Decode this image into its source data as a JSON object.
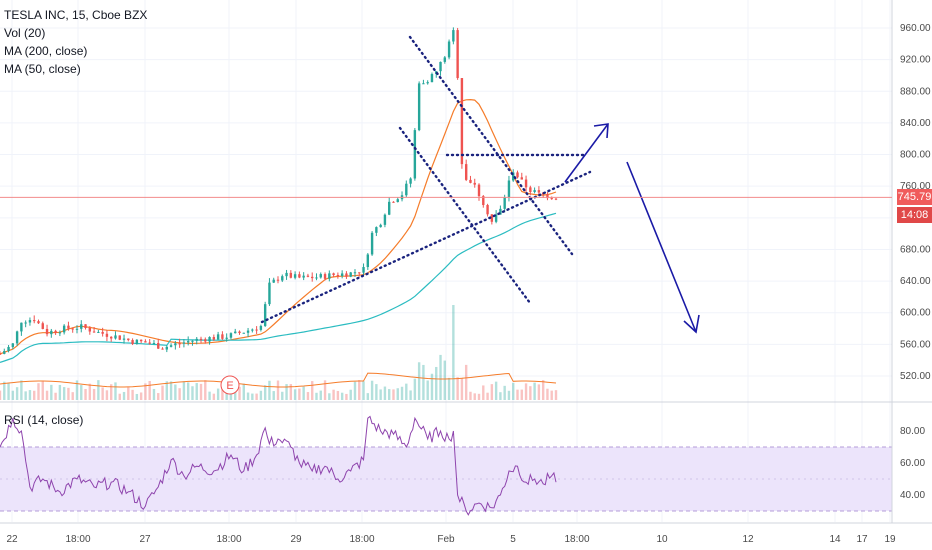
{
  "legend": {
    "symbol": "TESLA INC, 15, Cboe BZX",
    "vol": "Vol (20)",
    "ma200": "MA (200, close)",
    "ma50": "MA (50, close)"
  },
  "rsi_legend": "RSI (14, close)",
  "last_price_label": "745.79",
  "countdown_label": "14:08",
  "earnings_marker": "E",
  "colors": {
    "up": "#26a69a",
    "down": "#ef5350",
    "ma50": "#f57c2a",
    "ma200": "#2bbcc1",
    "rsi": "#8e44ad",
    "rsi_band": "#ece4fb",
    "trendline": "#1a237e",
    "arrow": "#1a1aa6",
    "price_line": "#f28b8b",
    "price_tag": "#f05b5b",
    "countdown_tag": "#e04848"
  },
  "chart_data": [
    {
      "type": "candlestick",
      "title": "TESLA INC, 15, Cboe BZX",
      "price_axis": {
        "ticks": [
          "960.00",
          "920.00",
          "880.00",
          "840.00",
          "800.00",
          "760.00",
          "720.00",
          "680.00",
          "640.00",
          "600.00",
          "560.00",
          "520.00"
        ],
        "range": [
          495,
          975
        ]
      },
      "time_axis": {
        "ticks": [
          "22",
          "18:00",
          "27",
          "18:00",
          "29",
          "18:00",
          "Feb",
          "5",
          "18:00",
          "10",
          "12",
          "14",
          "17",
          "19"
        ]
      },
      "price_path": [
        {
          "t": 0,
          "p": 548
        },
        {
          "t": 3,
          "p": 560
        },
        {
          "t": 5,
          "p": 590
        },
        {
          "t": 8,
          "p": 592
        },
        {
          "t": 11,
          "p": 575
        },
        {
          "t": 15,
          "p": 580
        },
        {
          "t": 19,
          "p": 582
        },
        {
          "t": 23,
          "p": 575
        },
        {
          "t": 27,
          "p": 570
        },
        {
          "t": 31,
          "p": 564
        },
        {
          "t": 35,
          "p": 562
        },
        {
          "t": 38,
          "p": 556
        },
        {
          "t": 41,
          "p": 560
        },
        {
          "t": 45,
          "p": 565
        },
        {
          "t": 49,
          "p": 568
        },
        {
          "t": 53,
          "p": 570
        },
        {
          "t": 57,
          "p": 576
        },
        {
          "t": 61,
          "p": 583
        },
        {
          "t": 63,
          "p": 635
        },
        {
          "t": 66,
          "p": 648
        },
        {
          "t": 70,
          "p": 644
        },
        {
          "t": 74,
          "p": 645
        },
        {
          "t": 78,
          "p": 648
        },
        {
          "t": 82,
          "p": 650
        },
        {
          "t": 85,
          "p": 655
        },
        {
          "t": 87,
          "p": 700
        },
        {
          "t": 89,
          "p": 715
        },
        {
          "t": 91,
          "p": 740
        },
        {
          "t": 94,
          "p": 750
        },
        {
          "t": 96,
          "p": 770
        },
        {
          "t": 98,
          "p": 890
        },
        {
          "t": 100,
          "p": 895
        },
        {
          "t": 102,
          "p": 905
        },
        {
          "t": 104,
          "p": 925
        },
        {
          "t": 106,
          "p": 955
        },
        {
          "t": 107,
          "p": 900
        },
        {
          "t": 108,
          "p": 790
        },
        {
          "t": 109,
          "p": 770
        },
        {
          "t": 111,
          "p": 760
        },
        {
          "t": 113,
          "p": 740
        },
        {
          "t": 115,
          "p": 715
        },
        {
          "t": 117,
          "p": 730
        },
        {
          "t": 119,
          "p": 765
        },
        {
          "t": 120,
          "p": 780
        },
        {
          "t": 122,
          "p": 765
        },
        {
          "t": 124,
          "p": 755
        },
        {
          "t": 126,
          "p": 750
        },
        {
          "t": 128,
          "p": 748
        },
        {
          "t": 130,
          "p": 746
        }
      ],
      "rsi": {
        "label": "RSI (14, close)",
        "ticks": [
          "80.00",
          "60.00",
          "40.00"
        ],
        "bands": [
          70,
          30
        ],
        "path": [
          {
            "t": 0,
            "v": 70
          },
          {
            "t": 3,
            "v": 88
          },
          {
            "t": 5,
            "v": 80
          },
          {
            "t": 7,
            "v": 45
          },
          {
            "t": 10,
            "v": 50
          },
          {
            "t": 14,
            "v": 42
          },
          {
            "t": 18,
            "v": 50
          },
          {
            "t": 22,
            "v": 45
          },
          {
            "t": 26,
            "v": 48
          },
          {
            "t": 30,
            "v": 42
          },
          {
            "t": 34,
            "v": 33
          },
          {
            "t": 37,
            "v": 45
          },
          {
            "t": 40,
            "v": 62
          },
          {
            "t": 43,
            "v": 52
          },
          {
            "t": 46,
            "v": 58
          },
          {
            "t": 50,
            "v": 55
          },
          {
            "t": 54,
            "v": 65
          },
          {
            "t": 57,
            "v": 55
          },
          {
            "t": 60,
            "v": 65
          },
          {
            "t": 62,
            "v": 82
          },
          {
            "t": 63,
            "v": 72
          },
          {
            "t": 65,
            "v": 75
          },
          {
            "t": 68,
            "v": 70
          },
          {
            "t": 70,
            "v": 60
          },
          {
            "t": 73,
            "v": 55
          },
          {
            "t": 76,
            "v": 58
          },
          {
            "t": 79,
            "v": 50
          },
          {
            "t": 82,
            "v": 55
          },
          {
            "t": 85,
            "v": 62
          },
          {
            "t": 86,
            "v": 88
          },
          {
            "t": 89,
            "v": 80
          },
          {
            "t": 92,
            "v": 78
          },
          {
            "t": 95,
            "v": 70
          },
          {
            "t": 97,
            "v": 88
          },
          {
            "t": 100,
            "v": 75
          },
          {
            "t": 103,
            "v": 80
          },
          {
            "t": 105,
            "v": 75
          },
          {
            "t": 106,
            "v": 80
          },
          {
            "t": 107,
            "v": 40
          },
          {
            "t": 109,
            "v": 30
          },
          {
            "t": 112,
            "v": 35
          },
          {
            "t": 115,
            "v": 32
          },
          {
            "t": 117,
            "v": 40
          },
          {
            "t": 119,
            "v": 55
          },
          {
            "t": 121,
            "v": 58
          },
          {
            "t": 123,
            "v": 48
          },
          {
            "t": 125,
            "v": 50
          },
          {
            "t": 127,
            "v": 47
          },
          {
            "t": 129,
            "v": 52
          },
          {
            "t": 130,
            "v": 48
          }
        ]
      }
    }
  ]
}
